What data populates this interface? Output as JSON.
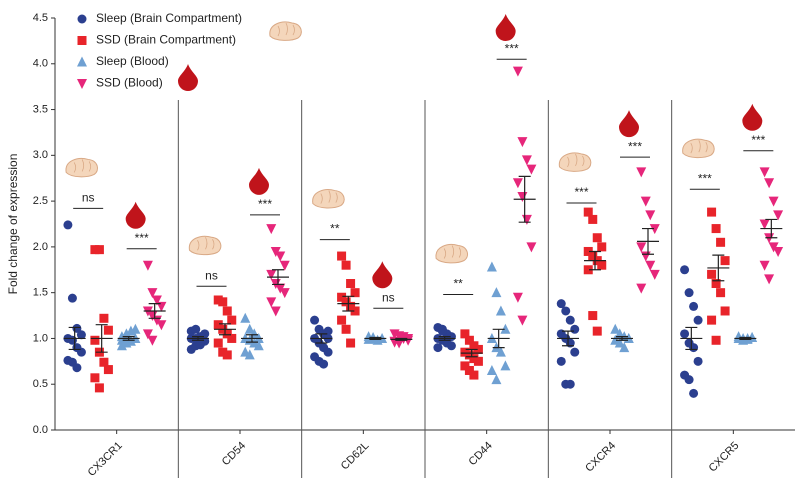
{
  "chart_data": {
    "type": "dot",
    "y_label": "Fold change of expression",
    "categories": [
      "CX3CR1",
      "CD54",
      "CD62L",
      "CD44",
      "CXCR4",
      "CXCR5"
    ],
    "ylim": [
      0,
      4.5
    ],
    "yticks": [
      {
        "value": 0,
        "label": "0.0"
      },
      {
        "value": 0.5,
        "label": "0.5"
      },
      {
        "value": 1,
        "label": "1.0"
      },
      {
        "value": 1.5,
        "label": "1.5"
      },
      {
        "value": 2,
        "label": "2.0"
      },
      {
        "value": 2.5,
        "label": "2.5"
      },
      {
        "value": 3,
        "label": "3.0"
      },
      {
        "value": 3.5,
        "label": "3.5"
      },
      {
        "value": 4,
        "label": "4.0"
      },
      {
        "value": 4.5,
        "label": "4.5"
      }
    ],
    "series": [
      {
        "name": "Sleep (Brain Compartment)",
        "color": "#2b3f8f",
        "marker": "circle",
        "values": [
          [
            2.24,
            1.44,
            1.11,
            1.04,
            1.0,
            0.98,
            0.9,
            0.85,
            0.76,
            0.74,
            0.68
          ],
          [
            0.88,
            0.92,
            0.95,
            0.97,
            1.0,
            1.0,
            1.02,
            1.05,
            1.08,
            1.1,
            0.93
          ],
          [
            1.2,
            1.1,
            1.05,
            1.0,
            1.0,
            0.95,
            0.9,
            0.85,
            0.8,
            0.75,
            0.72,
            1.08
          ],
          [
            1.12,
            1.1,
            1.05,
            1.02,
            1.0,
            0.98,
            0.95,
            0.92,
            0.9,
            1.08
          ],
          [
            1.38,
            1.3,
            1.2,
            1.1,
            1.05,
            1.0,
            0.95,
            0.85,
            0.75,
            0.5,
            0.5
          ],
          [
            1.75,
            1.5,
            1.35,
            1.2,
            1.05,
            0.95,
            0.9,
            0.75,
            0.6,
            0.55,
            0.4
          ]
        ],
        "mean": [
          1.0,
          1.0,
          1.0,
          1.0,
          1.0,
          1.0
        ],
        "sem": [
          0.12,
          0.02,
          0.05,
          0.02,
          0.08,
          0.12
        ]
      },
      {
        "name": "SSD (Brain Compartment)",
        "color": "#e8242a",
        "marker": "square",
        "values": [
          [
            1.97,
            1.97,
            1.22,
            1.09,
            0.98,
            0.85,
            0.74,
            0.66,
            0.57,
            0.46
          ],
          [
            1.42,
            1.4,
            1.3,
            1.2,
            1.15,
            1.1,
            1.05,
            1.0,
            0.95,
            0.85,
            0.82
          ],
          [
            1.9,
            1.8,
            1.6,
            1.5,
            1.45,
            1.4,
            1.35,
            1.3,
            1.2,
            1.1,
            0.95
          ],
          [
            1.05,
            0.98,
            0.92,
            0.88,
            0.85,
            0.82,
            0.78,
            0.75,
            0.7,
            0.65,
            0.6
          ],
          [
            2.38,
            2.3,
            2.1,
            2.0,
            1.95,
            1.9,
            1.85,
            1.8,
            1.75,
            1.25,
            1.08
          ],
          [
            2.38,
            2.2,
            2.05,
            1.85,
            1.7,
            1.6,
            1.5,
            1.3,
            1.2,
            0.98
          ]
        ],
        "mean": [
          1.0,
          1.1,
          1.38,
          0.84,
          1.85,
          1.77
        ],
        "sem": [
          0.15,
          0.06,
          0.08,
          0.04,
          0.1,
          0.14
        ]
      },
      {
        "name": "Sleep (Blood)",
        "color": "#6fa0d2",
        "marker": "triangle-up",
        "values": [
          [
            0.92,
            0.95,
            0.97,
            1.0,
            1.02,
            1.05,
            1.08,
            1.1,
            0.98,
            1.0
          ],
          [
            1.22,
            1.1,
            1.05,
            1.0,
            1.0,
            0.98,
            0.95,
            0.92,
            0.85,
            0.82
          ],
          [
            1.02,
            1.0,
            0.98,
            1.0,
            0.99,
            1.01
          ],
          [
            1.78,
            1.5,
            1.3,
            1.1,
            1.0,
            0.9,
            0.85,
            0.7,
            0.65,
            0.55
          ],
          [
            1.1,
            1.05,
            1.02,
            1.0,
            0.98,
            0.95,
            0.9,
            1.0
          ],
          [
            1.02,
            1.0,
            0.99,
            1.01,
            1.0,
            0.98,
            1.0,
            1.01
          ]
        ],
        "mean": [
          1.0,
          1.0,
          1.0,
          1.0,
          1.0,
          1.0
        ],
        "sem": [
          0.02,
          0.04,
          0.01,
          0.1,
          0.02,
          0.01
        ]
      },
      {
        "name": "SSD (Blood)",
        "color": "#e6267a",
        "marker": "triangle-down",
        "values": [
          [
            1.8,
            1.5,
            1.42,
            1.35,
            1.3,
            1.25,
            1.2,
            1.15,
            1.05,
            0.98
          ],
          [
            2.2,
            1.95,
            1.9,
            1.8,
            1.7,
            1.6,
            1.55,
            1.5,
            1.4,
            1.3
          ],
          [
            1.05,
            1.03,
            1.0,
            0.98,
            0.97,
            0.95,
            1.02,
            1.0,
            0.96
          ],
          [
            3.92,
            3.15,
            2.95,
            2.85,
            2.7,
            2.55,
            2.3,
            2.0,
            1.45,
            1.2
          ],
          [
            2.82,
            2.5,
            2.35,
            2.2,
            2.0,
            1.9,
            1.8,
            1.7,
            1.55
          ],
          [
            2.82,
            2.7,
            2.5,
            2.35,
            2.25,
            2.1,
            2.0,
            1.95,
            1.8,
            1.65
          ]
        ],
        "mean": [
          1.3,
          1.67,
          0.99,
          2.52,
          2.06,
          2.2
        ],
        "sem": [
          0.08,
          0.08,
          0.01,
          0.25,
          0.14,
          0.1
        ]
      }
    ],
    "annotations": [
      {
        "category": 0,
        "groups": [
          0,
          1
        ],
        "label": "ns",
        "y": 2.42
      },
      {
        "category": 0,
        "groups": [
          2,
          3
        ],
        "label": "***",
        "y": 1.98
      },
      {
        "category": 1,
        "groups": [
          0,
          1
        ],
        "label": "ns",
        "y": 1.57
      },
      {
        "category": 1,
        "groups": [
          2,
          3
        ],
        "label": "***",
        "y": 2.35
      },
      {
        "category": 2,
        "groups": [
          0,
          1
        ],
        "label": "**",
        "y": 2.08
      },
      {
        "category": 2,
        "groups": [
          2,
          3
        ],
        "label": "ns",
        "y": 1.33
      },
      {
        "category": 3,
        "groups": [
          0,
          1
        ],
        "label": "**",
        "y": 1.48
      },
      {
        "category": 3,
        "groups": [
          2,
          3
        ],
        "label": "***",
        "y": 4.05
      },
      {
        "category": 4,
        "groups": [
          0,
          1
        ],
        "label": "***",
        "y": 2.48
      },
      {
        "category": 4,
        "groups": [
          2,
          3
        ],
        "label": "***",
        "y": 2.98
      },
      {
        "category": 5,
        "groups": [
          0,
          1
        ],
        "label": "***",
        "y": 2.63
      },
      {
        "category": 5,
        "groups": [
          2,
          3
        ],
        "label": "***",
        "y": 3.05
      }
    ]
  }
}
